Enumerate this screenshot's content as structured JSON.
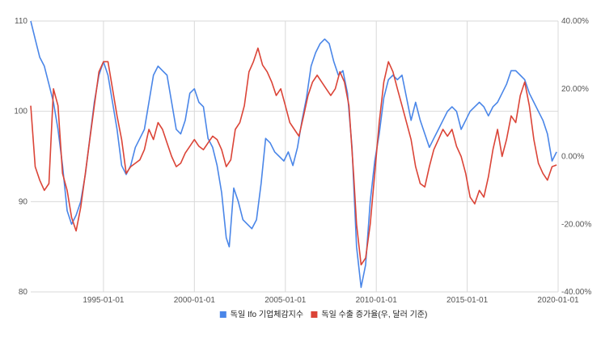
{
  "colors": {
    "series_left": "#4a86e8",
    "series_right": "#db4437",
    "grid": "#d9d9d9",
    "text": "#555555"
  },
  "chart_data": {
    "type": "line",
    "title": "",
    "xlabel": "",
    "ylabel_left": "",
    "ylabel_right": "",
    "grid": true,
    "legend_position": "bottom",
    "x_range": [
      "1991-01-01",
      "2020-01-01"
    ],
    "x_ticks": [
      "1995-01-01",
      "2000-01-01",
      "2005-01-01",
      "2010-01-01",
      "2015-01-01",
      "2020-01-01"
    ],
    "y_left": {
      "range": [
        80,
        110
      ],
      "ticks": [
        "80",
        "90",
        "100",
        "110"
      ]
    },
    "y_right": {
      "range": [
        -40,
        40
      ],
      "unit": "%",
      "ticks": [
        "-40.00%",
        "-20.00%",
        "0.00%",
        "20.00%",
        "40.00%"
      ]
    },
    "series": [
      {
        "name": "독일 Ifo 기업체감지수",
        "axis": "left",
        "points": [
          [
            "1991-01",
            110.0
          ],
          [
            "1991-04",
            108.0
          ],
          [
            "1991-07",
            106.0
          ],
          [
            "1991-10",
            105.0
          ],
          [
            "1992-01",
            103.0
          ],
          [
            "1992-04",
            101.0
          ],
          [
            "1992-07",
            98.0
          ],
          [
            "1992-10",
            94.0
          ],
          [
            "1993-01",
            89.0
          ],
          [
            "1993-04",
            87.5
          ],
          [
            "1993-07",
            88.5
          ],
          [
            "1993-10",
            90.0
          ],
          [
            "1994-01",
            93.0
          ],
          [
            "1994-04",
            97.0
          ],
          [
            "1994-07",
            101.0
          ],
          [
            "1994-10",
            104.0
          ],
          [
            "1995-01",
            105.5
          ],
          [
            "1995-04",
            104.0
          ],
          [
            "1995-07",
            101.0
          ],
          [
            "1995-10",
            98.0
          ],
          [
            "1996-01",
            94.0
          ],
          [
            "1996-04",
            93.0
          ],
          [
            "1996-07",
            94.0
          ],
          [
            "1996-10",
            96.0
          ],
          [
            "1997-01",
            97.0
          ],
          [
            "1997-04",
            98.0
          ],
          [
            "1997-07",
            101.0
          ],
          [
            "1997-10",
            104.0
          ],
          [
            "1998-01",
            105.0
          ],
          [
            "1998-04",
            104.5
          ],
          [
            "1998-07",
            104.0
          ],
          [
            "1998-10",
            101.0
          ],
          [
            "1999-01",
            98.0
          ],
          [
            "1999-04",
            97.5
          ],
          [
            "1999-07",
            99.0
          ],
          [
            "1999-10",
            102.0
          ],
          [
            "2000-01",
            102.5
          ],
          [
            "2000-04",
            101.0
          ],
          [
            "2000-07",
            100.5
          ],
          [
            "2000-10",
            97.0
          ],
          [
            "2001-01",
            96.0
          ],
          [
            "2001-04",
            94.0
          ],
          [
            "2001-07",
            91.0
          ],
          [
            "2001-10",
            86.0
          ],
          [
            "2001-12",
            85.0
          ],
          [
            "2002-03",
            91.5
          ],
          [
            "2002-06",
            90.0
          ],
          [
            "2002-09",
            88.0
          ],
          [
            "2002-12",
            87.5
          ],
          [
            "2003-03",
            87.0
          ],
          [
            "2003-06",
            88.0
          ],
          [
            "2003-09",
            92.0
          ],
          [
            "2003-12",
            97.0
          ],
          [
            "2004-03",
            96.5
          ],
          [
            "2004-06",
            95.5
          ],
          [
            "2004-09",
            95.0
          ],
          [
            "2004-12",
            94.5
          ],
          [
            "2005-03",
            95.5
          ],
          [
            "2005-06",
            94.0
          ],
          [
            "2005-09",
            96.0
          ],
          [
            "2005-12",
            99.0
          ],
          [
            "2006-03",
            101.5
          ],
          [
            "2006-06",
            105.0
          ],
          [
            "2006-09",
            106.5
          ],
          [
            "2006-12",
            107.5
          ],
          [
            "2007-03",
            108.0
          ],
          [
            "2007-06",
            107.5
          ],
          [
            "2007-09",
            105.5
          ],
          [
            "2007-12",
            104.0
          ],
          [
            "2008-03",
            104.5
          ],
          [
            "2008-06",
            102.0
          ],
          [
            "2008-09",
            96.0
          ],
          [
            "2008-12",
            85.0
          ],
          [
            "2009-03",
            80.5
          ],
          [
            "2009-06",
            83.0
          ],
          [
            "2009-09",
            90.0
          ],
          [
            "2009-12",
            94.5
          ],
          [
            "2010-03",
            97.5
          ],
          [
            "2010-06",
            101.5
          ],
          [
            "2010-09",
            103.5
          ],
          [
            "2010-12",
            104.0
          ],
          [
            "2011-03",
            103.5
          ],
          [
            "2011-06",
            104.0
          ],
          [
            "2011-09",
            101.5
          ],
          [
            "2011-12",
            99.0
          ],
          [
            "2012-03",
            101.0
          ],
          [
            "2012-06",
            99.0
          ],
          [
            "2012-09",
            97.5
          ],
          [
            "2012-12",
            96.0
          ],
          [
            "2013-03",
            97.0
          ],
          [
            "2013-06",
            98.0
          ],
          [
            "2013-09",
            99.0
          ],
          [
            "2013-12",
            100.0
          ],
          [
            "2014-03",
            100.5
          ],
          [
            "2014-06",
            100.0
          ],
          [
            "2014-09",
            98.0
          ],
          [
            "2014-12",
            99.0
          ],
          [
            "2015-03",
            100.0
          ],
          [
            "2015-06",
            100.5
          ],
          [
            "2015-09",
            101.0
          ],
          [
            "2015-12",
            100.5
          ],
          [
            "2016-03",
            99.5
          ],
          [
            "2016-06",
            100.5
          ],
          [
            "2016-09",
            101.0
          ],
          [
            "2016-12",
            102.0
          ],
          [
            "2017-03",
            103.0
          ],
          [
            "2017-06",
            104.5
          ],
          [
            "2017-09",
            104.5
          ],
          [
            "2017-12",
            104.0
          ],
          [
            "2018-03",
            103.5
          ],
          [
            "2018-06",
            102.0
          ],
          [
            "2018-09",
            101.0
          ],
          [
            "2018-12",
            100.0
          ],
          [
            "2019-03",
            99.0
          ],
          [
            "2019-06",
            97.5
          ],
          [
            "2019-09",
            94.5
          ],
          [
            "2019-12",
            95.5
          ]
        ]
      },
      {
        "name": "독일 수출 증가율(우, 달러 기준)",
        "axis": "right",
        "points": [
          [
            "1991-01",
            15.0
          ],
          [
            "1991-04",
            -3.0
          ],
          [
            "1991-07",
            -7.0
          ],
          [
            "1991-10",
            -10.0
          ],
          [
            "1992-01",
            -8.0
          ],
          [
            "1992-04",
            20.0
          ],
          [
            "1992-07",
            15.0
          ],
          [
            "1992-10",
            -5.0
          ],
          [
            "1993-01",
            -10.0
          ],
          [
            "1993-04",
            -18.0
          ],
          [
            "1993-07",
            -22.0
          ],
          [
            "1993-10",
            -15.0
          ],
          [
            "1994-01",
            -5.0
          ],
          [
            "1994-04",
            5.0
          ],
          [
            "1994-07",
            15.0
          ],
          [
            "1994-10",
            25.0
          ],
          [
            "1995-01",
            28.0
          ],
          [
            "1995-04",
            28.0
          ],
          [
            "1995-07",
            20.0
          ],
          [
            "1995-10",
            12.0
          ],
          [
            "1996-01",
            5.0
          ],
          [
            "1996-04",
            -5.0
          ],
          [
            "1996-07",
            -3.0
          ],
          [
            "1996-10",
            -2.0
          ],
          [
            "1997-01",
            -1.0
          ],
          [
            "1997-04",
            2.0
          ],
          [
            "1997-07",
            8.0
          ],
          [
            "1997-10",
            5.0
          ],
          [
            "1998-01",
            10.0
          ],
          [
            "1998-04",
            8.0
          ],
          [
            "1998-07",
            4.0
          ],
          [
            "1998-10",
            0.0
          ],
          [
            "1999-01",
            -3.0
          ],
          [
            "1999-04",
            -2.0
          ],
          [
            "1999-07",
            1.0
          ],
          [
            "1999-10",
            3.0
          ],
          [
            "2000-01",
            5.0
          ],
          [
            "2000-04",
            3.0
          ],
          [
            "2000-07",
            2.0
          ],
          [
            "2000-10",
            4.0
          ],
          [
            "2001-01",
            6.0
          ],
          [
            "2001-04",
            5.0
          ],
          [
            "2001-07",
            2.0
          ],
          [
            "2001-10",
            -3.0
          ],
          [
            "2002-01",
            -1.0
          ],
          [
            "2002-04",
            8.0
          ],
          [
            "2002-07",
            10.0
          ],
          [
            "2002-10",
            15.0
          ],
          [
            "2003-01",
            25.0
          ],
          [
            "2003-04",
            28.0
          ],
          [
            "2003-07",
            32.0
          ],
          [
            "2003-10",
            27.0
          ],
          [
            "2004-01",
            25.0
          ],
          [
            "2004-04",
            22.0
          ],
          [
            "2004-07",
            18.0
          ],
          [
            "2004-10",
            20.0
          ],
          [
            "2005-01",
            15.0
          ],
          [
            "2005-04",
            10.0
          ],
          [
            "2005-07",
            8.0
          ],
          [
            "2005-10",
            6.0
          ],
          [
            "2006-01",
            12.0
          ],
          [
            "2006-04",
            18.0
          ],
          [
            "2006-07",
            22.0
          ],
          [
            "2006-10",
            24.0
          ],
          [
            "2007-01",
            22.0
          ],
          [
            "2007-04",
            20.0
          ],
          [
            "2007-07",
            18.0
          ],
          [
            "2007-10",
            20.0
          ],
          [
            "2008-01",
            25.0
          ],
          [
            "2008-04",
            22.0
          ],
          [
            "2008-07",
            15.0
          ],
          [
            "2008-10",
            -5.0
          ],
          [
            "2008-12",
            -20.0
          ],
          [
            "2009-03",
            -32.0
          ],
          [
            "2009-06",
            -30.0
          ],
          [
            "2009-09",
            -20.0
          ],
          [
            "2009-12",
            -5.0
          ],
          [
            "2010-03",
            10.0
          ],
          [
            "2010-06",
            22.0
          ],
          [
            "2010-09",
            28.0
          ],
          [
            "2010-12",
            25.0
          ],
          [
            "2011-03",
            20.0
          ],
          [
            "2011-06",
            15.0
          ],
          [
            "2011-09",
            10.0
          ],
          [
            "2011-12",
            5.0
          ],
          [
            "2012-03",
            -3.0
          ],
          [
            "2012-06",
            -8.0
          ],
          [
            "2012-09",
            -9.0
          ],
          [
            "2012-12",
            -3.0
          ],
          [
            "2013-03",
            2.0
          ],
          [
            "2013-06",
            5.0
          ],
          [
            "2013-09",
            8.0
          ],
          [
            "2013-12",
            6.0
          ],
          [
            "2014-03",
            8.0
          ],
          [
            "2014-06",
            3.0
          ],
          [
            "2014-09",
            0.0
          ],
          [
            "2014-12",
            -5.0
          ],
          [
            "2015-03",
            -12.0
          ],
          [
            "2015-06",
            -14.0
          ],
          [
            "2015-09",
            -10.0
          ],
          [
            "2015-12",
            -12.0
          ],
          [
            "2016-03",
            -6.0
          ],
          [
            "2016-06",
            2.0
          ],
          [
            "2016-09",
            8.0
          ],
          [
            "2016-12",
            0.0
          ],
          [
            "2017-03",
            5.0
          ],
          [
            "2017-06",
            12.0
          ],
          [
            "2017-09",
            10.0
          ],
          [
            "2017-12",
            18.0
          ],
          [
            "2018-03",
            22.0
          ],
          [
            "2018-06",
            15.0
          ],
          [
            "2018-09",
            5.0
          ],
          [
            "2018-12",
            -2.0
          ],
          [
            "2019-03",
            -5.0
          ],
          [
            "2019-06",
            -7.0
          ],
          [
            "2019-09",
            -3.0
          ],
          [
            "2019-12",
            -2.5
          ]
        ]
      }
    ]
  }
}
